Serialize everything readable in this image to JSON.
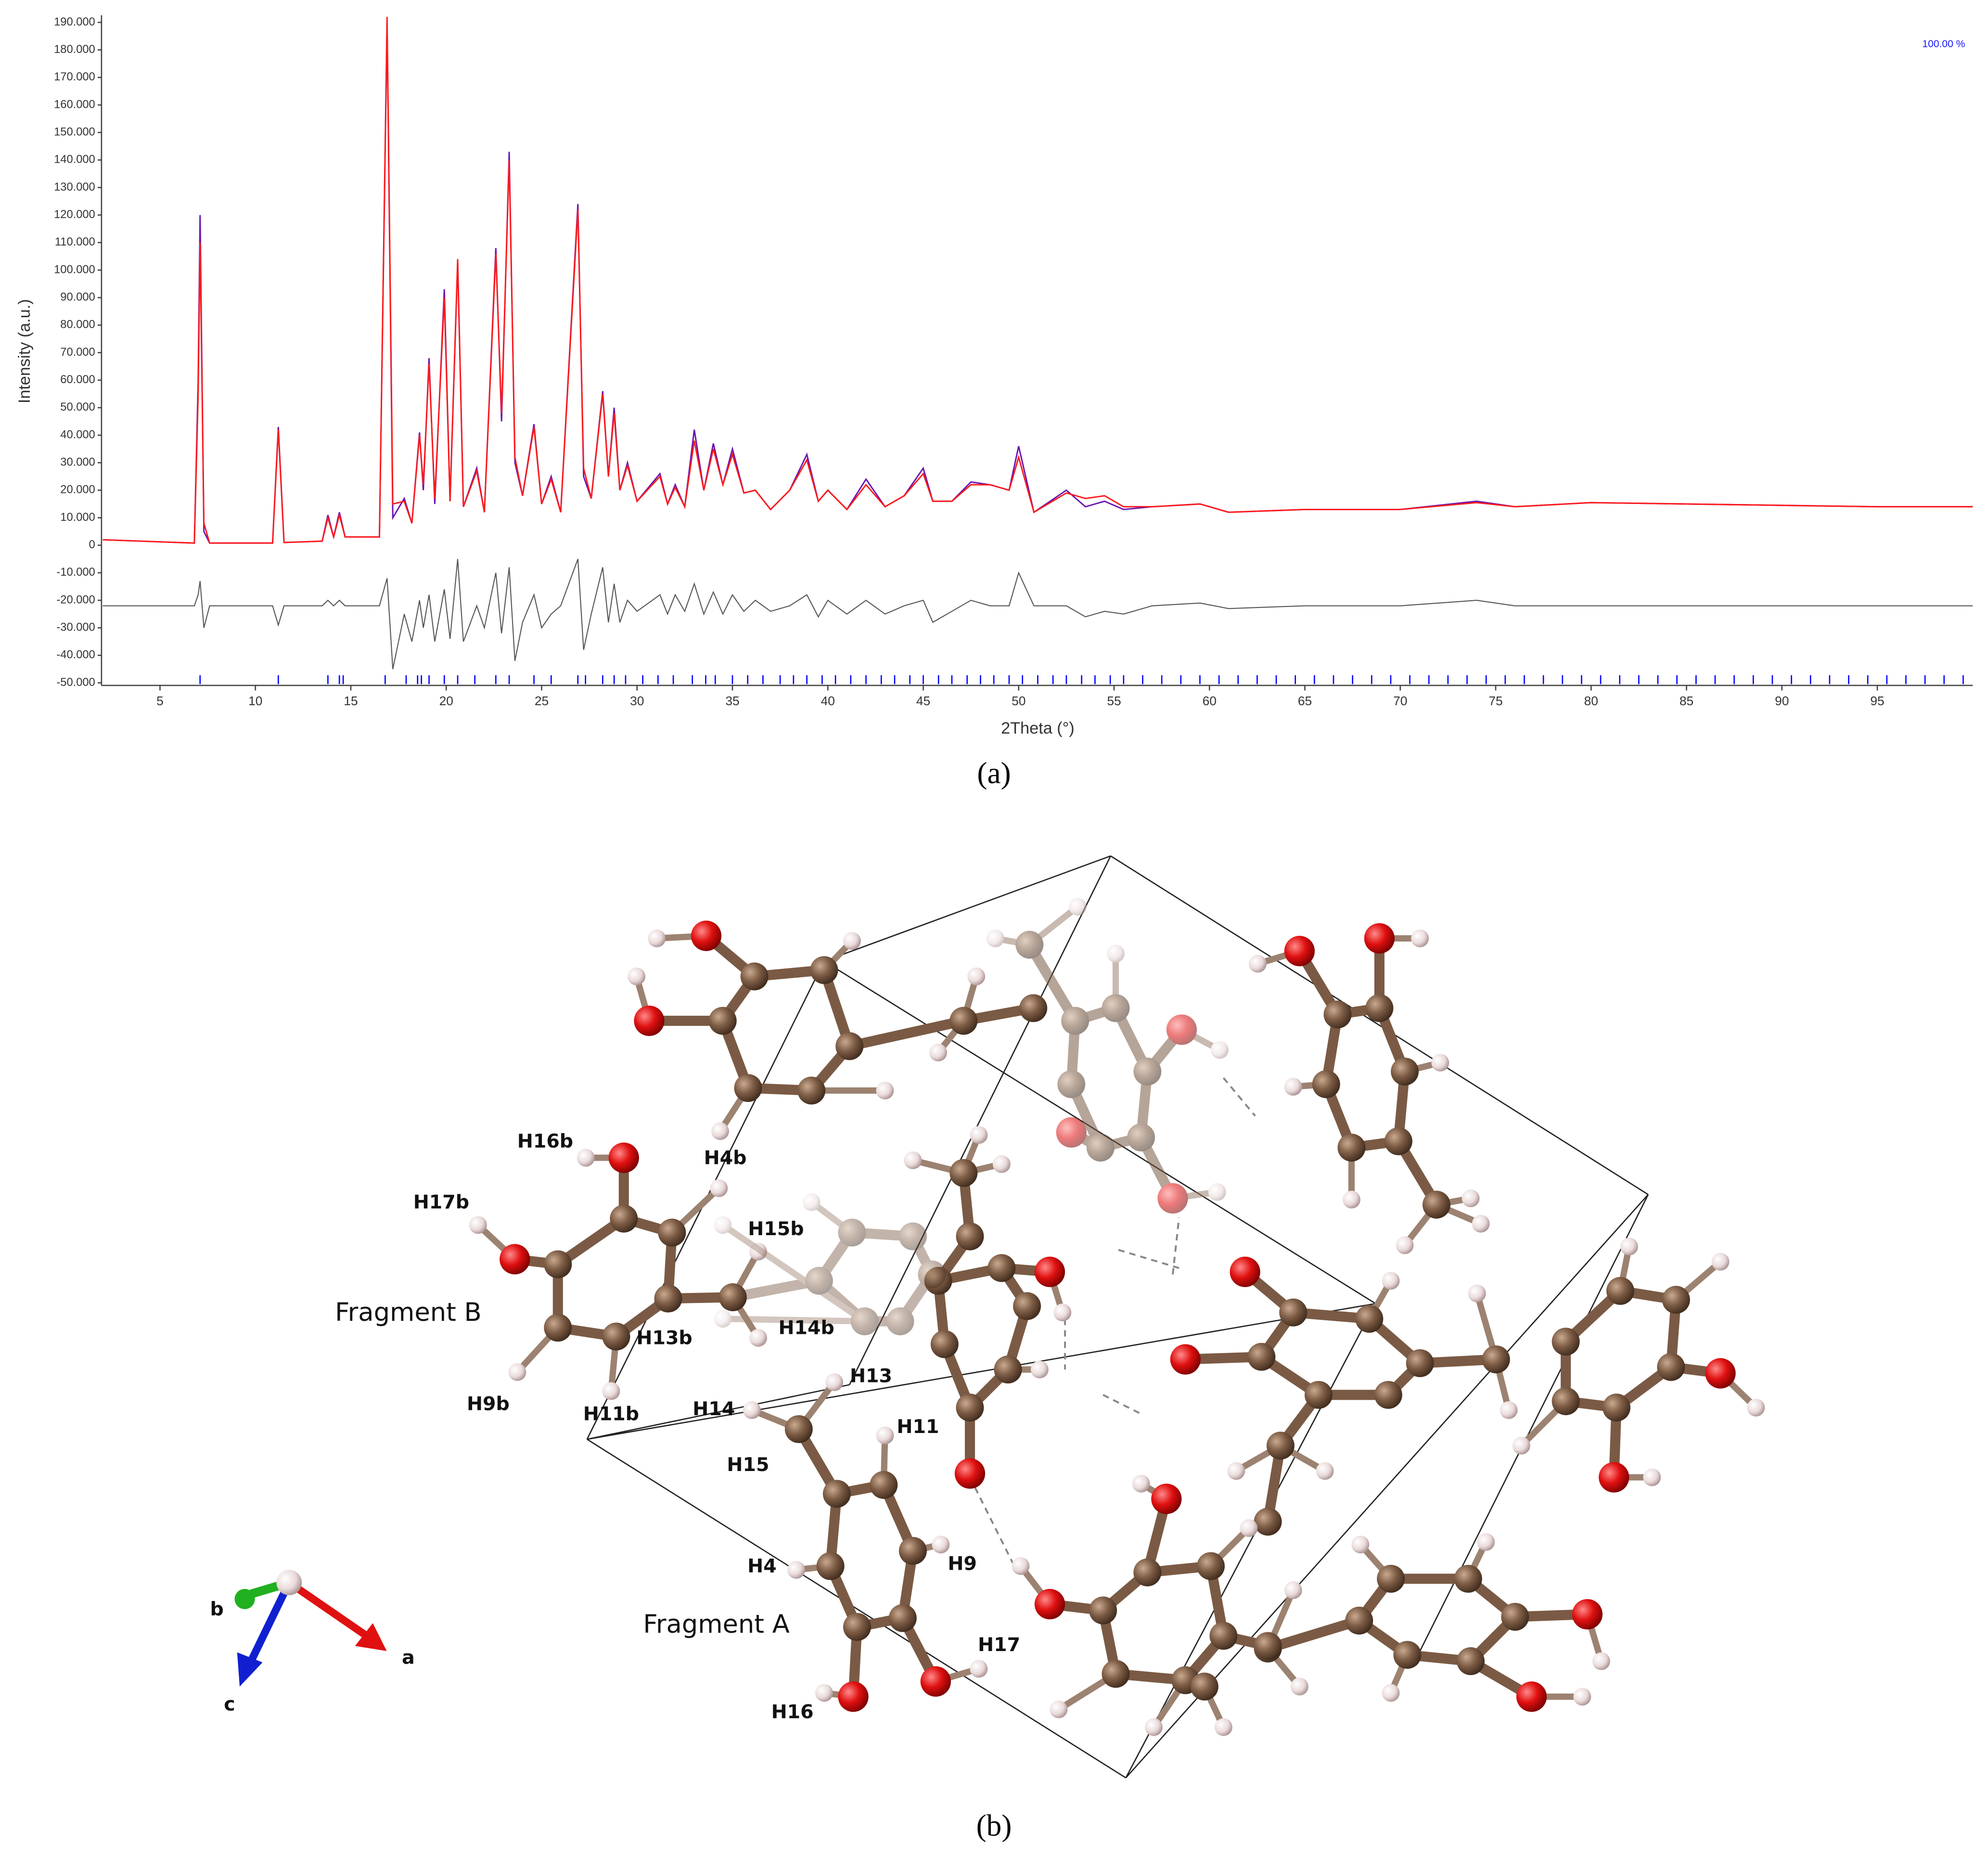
{
  "chart_data": {
    "type": "line",
    "caption": "(a)",
    "x_label": "2Theta (°)",
    "y_label": "Intensity (a.u.)",
    "annotation": "100.00 %",
    "xlim": [
      2,
      100
    ],
    "xticks": [
      5,
      10,
      15,
      20,
      25,
      30,
      35,
      40,
      45,
      50,
      55,
      60,
      65,
      70,
      75,
      80,
      85,
      90,
      95
    ],
    "ylim": [
      -50000,
      191000
    ],
    "yticks": [
      {
        "value": -50000,
        "label": "-50.000"
      },
      {
        "value": -40000,
        "label": "-40.000"
      },
      {
        "value": -30000,
        "label": "-30.000"
      },
      {
        "value": -20000,
        "label": "-20.000"
      },
      {
        "value": -10000,
        "label": "-10.000"
      },
      0,
      {
        "value": 10000,
        "label": "10.000"
      },
      {
        "value": 20000,
        "label": "20.000"
      },
      {
        "value": 30000,
        "label": "30.000"
      },
      {
        "value": 40000,
        "label": "40.000"
      },
      {
        "value": 50000,
        "label": "50.000"
      },
      {
        "value": 60000,
        "label": "60.000"
      },
      {
        "value": 70000,
        "label": "70.000"
      },
      {
        "value": 80000,
        "label": "80.000"
      },
      {
        "value": 90000,
        "label": "90.000"
      },
      {
        "value": 100000,
        "label": "100.000"
      },
      {
        "value": 110000,
        "label": "110.000"
      },
      {
        "value": 120000,
        "label": "120.000"
      },
      {
        "value": 130000,
        "label": "130.000"
      },
      {
        "value": 140000,
        "label": "140.000"
      },
      {
        "value": 150000,
        "label": "150.000"
      },
      {
        "value": 160000,
        "label": "160.000"
      },
      {
        "value": 170000,
        "label": "170.000"
      },
      {
        "value": 180000,
        "label": "180.000"
      },
      {
        "value": 190000,
        "label": "190.000"
      }
    ],
    "x": [
      2,
      6.8,
      7.0,
      7.1,
      7.3,
      7.6,
      10.9,
      11.2,
      11.5,
      13.5,
      13.8,
      14.1,
      14.4,
      14.7,
      16.5,
      16.9,
      17.2,
      17.8,
      18.2,
      18.6,
      18.8,
      19.1,
      19.4,
      19.9,
      20.2,
      20.6,
      20.9,
      21.6,
      22.0,
      22.6,
      22.9,
      23.3,
      23.6,
      24.0,
      24.6,
      25.0,
      25.5,
      26.0,
      26.9,
      27.2,
      27.6,
      28.2,
      28.5,
      28.8,
      29.1,
      29.5,
      30.0,
      31.2,
      31.6,
      32.0,
      32.5,
      33.0,
      33.5,
      34.0,
      34.5,
      35.0,
      35.6,
      36.2,
      37.0,
      38.0,
      38.9,
      39.5,
      40.0,
      41.0,
      42.0,
      43.0,
      44.0,
      45.0,
      45.5,
      46.5,
      47.5,
      48.5,
      49.5,
      50.0,
      50.8,
      52.5,
      53.5,
      54.5,
      55.5,
      57.0,
      59.5,
      61.0,
      65.0,
      70.0,
      74.0,
      76.0,
      80.0,
      85.0,
      90.0,
      95.0,
      100
    ],
    "series": [
      {
        "color": "#6a12b0",
        "values": [
          2000,
          800,
          60000,
          120000,
          5000,
          800,
          800,
          43000,
          1000,
          1500,
          11000,
          3000,
          12000,
          3000,
          3000,
          190000,
          10000,
          17000,
          8000,
          41000,
          20000,
          68000,
          15000,
          93000,
          16000,
          103000,
          14000,
          28000,
          12000,
          108000,
          45000,
          143000,
          30000,
          18000,
          44000,
          15000,
          25000,
          12000,
          124000,
          25000,
          17000,
          56000,
          25000,
          50000,
          20000,
          30000,
          16000,
          26000,
          15000,
          22000,
          14000,
          42000,
          20000,
          37000,
          22000,
          35000,
          19000,
          20000,
          13000,
          20000,
          33000,
          16000,
          20000,
          13000,
          24000,
          14000,
          18000,
          28000,
          16000,
          16000,
          23000,
          22000,
          20000,
          36000,
          12000,
          20000,
          14000,
          16000,
          13000,
          14000,
          15000,
          12000,
          13000,
          13000,
          16000,
          14000,
          15500,
          15000,
          14500,
          14000,
          14000
        ]
      },
      {
        "color": "#ff1a1a",
        "values": [
          2000,
          800,
          55000,
          110000,
          8000,
          800,
          800,
          42000,
          1000,
          1500,
          10000,
          3000,
          11000,
          3000,
          3000,
          192000,
          15000,
          16000,
          8000,
          40000,
          22000,
          66000,
          17000,
          90000,
          16000,
          104000,
          14000,
          27000,
          12000,
          106000,
          48000,
          140000,
          32000,
          18000,
          43000,
          15000,
          24000,
          12000,
          122000,
          28000,
          17000,
          55000,
          25000,
          48000,
          20000,
          29000,
          16000,
          25000,
          15000,
          21000,
          14000,
          38000,
          20000,
          35000,
          22000,
          33000,
          19000,
          20000,
          13000,
          20000,
          31000,
          16000,
          20000,
          13000,
          22000,
          14000,
          18000,
          26000,
          16000,
          16000,
          22000,
          22000,
          20000,
          32000,
          12000,
          19000,
          17000,
          18000,
          14000,
          14000,
          15000,
          12000,
          13000,
          13000,
          15500,
          14000,
          15500,
          15000,
          14500,
          14000,
          14000
        ]
      },
      {
        "color": "#555555",
        "values": [
          -22000,
          -22000,
          -18000,
          -13000,
          -30000,
          -22000,
          -22000,
          -29000,
          -22000,
          -22000,
          -20000,
          -22000,
          -20000,
          -22000,
          -22000,
          -12000,
          -45000,
          -25000,
          -35000,
          -20000,
          -30000,
          -18000,
          -35000,
          -16000,
          -34000,
          -5000,
          -35000,
          -22000,
          -30000,
          -10000,
          -32000,
          -8000,
          -42000,
          -28000,
          -18000,
          -30000,
          -25000,
          -22000,
          -5000,
          -38000,
          -25000,
          -8000,
          -28000,
          -14000,
          -28000,
          -20000,
          -24000,
          -18000,
          -25000,
          -18000,
          -24000,
          -14000,
          -25000,
          -17000,
          -25000,
          -18000,
          -24000,
          -20000,
          -24000,
          -22000,
          -18000,
          -26000,
          -20000,
          -25000,
          -20000,
          -25000,
          -22000,
          -20000,
          -28000,
          -24000,
          -20000,
          -22000,
          -22000,
          -10000,
          -22000,
          -22000,
          -26000,
          -24000,
          -25000,
          -22000,
          -21000,
          -23000,
          -22000,
          -22000,
          -20000,
          -22000,
          -22000,
          -22000,
          -22000,
          -22000,
          -22000
        ]
      }
    ],
    "reflection_color": "#0000ff",
    "reflections": [
      7.1,
      11.2,
      13.8,
      14.4,
      14.6,
      16.8,
      17.9,
      18.5,
      18.7,
      19.1,
      19.9,
      20.6,
      21.5,
      22.6,
      23.3,
      24.6,
      25.5,
      26.9,
      27.3,
      28.2,
      28.8,
      29.4,
      30.3,
      31.1,
      31.9,
      32.9,
      33.6,
      34.1,
      35.0,
      35.8,
      36.6,
      37.5,
      38.2,
      38.9,
      39.7,
      40.4,
      41.2,
      42.0,
      42.8,
      43.5,
      44.3,
      45.0,
      45.8,
      46.5,
      47.3,
      48.0,
      48.7,
      49.5,
      50.2,
      51.0,
      51.8,
      52.5,
      53.3,
      54.0,
      54.8,
      55.5,
      56.5,
      57.5,
      58.5,
      59.5,
      60.5,
      61.5,
      62.5,
      63.5,
      64.5,
      65.5,
      66.5,
      67.5,
      68.5,
      69.5,
      70.5,
      71.5,
      72.5,
      73.5,
      74.5,
      75.5,
      76.5,
      77.5,
      78.5,
      79.5,
      80.5,
      81.5,
      82.5,
      83.5,
      84.5,
      85.5,
      86.5,
      87.5,
      88.5,
      89.5,
      90.5,
      91.5,
      92.5,
      93.5,
      94.5,
      95.5,
      96.5,
      97.5,
      98.5,
      99.5
    ]
  },
  "structure": {
    "caption": "(b)",
    "fragments": [
      "Fragment B",
      "Fragment A"
    ],
    "atom_labels": [
      "H16b",
      "H4b",
      "H17b",
      "H15b",
      "H13b",
      "H14b",
      "H9b",
      "H11b",
      "H13",
      "H14",
      "H11",
      "H15",
      "H4",
      "H9",
      "H17",
      "H16"
    ],
    "axes": [
      "a",
      "b",
      "c"
    ]
  }
}
